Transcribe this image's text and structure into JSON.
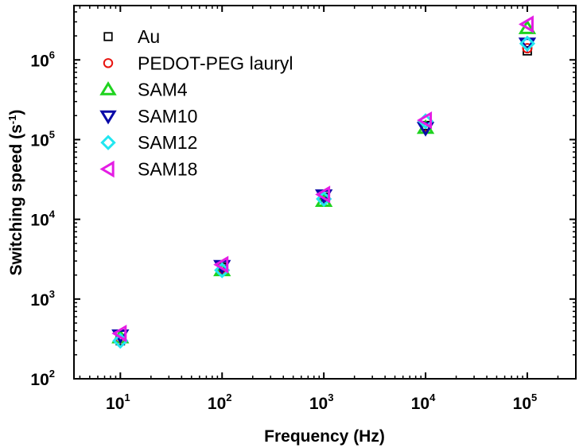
{
  "chart_data": {
    "type": "scatter",
    "xscale": "log",
    "yscale": "log",
    "xlim": [
      3.5,
      300000
    ],
    "ylim": [
      100,
      4800000
    ],
    "xlabel": "Frequency (Hz)",
    "ylabel": "Switching speed (s",
    "ylabel_exp": "-1",
    "ylabel_close": ")",
    "xticks": [
      {
        "base": "10",
        "exp": "1",
        "value": 10
      },
      {
        "base": "10",
        "exp": "2",
        "value": 100
      },
      {
        "base": "10",
        "exp": "3",
        "value": 1000
      },
      {
        "base": "10",
        "exp": "4",
        "value": 10000
      },
      {
        "base": "10",
        "exp": "5",
        "value": 100000
      }
    ],
    "yticks": [
      {
        "base": "10",
        "exp": "2",
        "value": 100
      },
      {
        "base": "10",
        "exp": "3",
        "value": 1000
      },
      {
        "base": "10",
        "exp": "4",
        "value": 10000
      },
      {
        "base": "10",
        "exp": "5",
        "value": 100000
      },
      {
        "base": "10",
        "exp": "6",
        "value": 1000000
      }
    ],
    "x": [
      10,
      100,
      1000,
      10000,
      100000
    ],
    "series": [
      {
        "name": "Au",
        "marker": "square",
        "color": "#000000",
        "values": [
          300,
          2500,
          19000,
          150000,
          1300000
        ]
      },
      {
        "name": "PEDOT-PEG lauryl",
        "marker": "circle",
        "color": "#e8130f",
        "values": [
          320,
          2400,
          18000,
          145000,
          1400000
        ]
      },
      {
        "name": "SAM4",
        "marker": "triangle-up",
        "color": "#1fd31f",
        "values": [
          330,
          2300,
          17000,
          140000,
          2500000
        ]
      },
      {
        "name": "SAM10",
        "marker": "triangle-down",
        "color": "#0a0aa8",
        "values": [
          350,
          2600,
          20000,
          140000,
          1600000
        ]
      },
      {
        "name": "SAM12",
        "marker": "diamond",
        "color": "#22e6f0",
        "values": [
          300,
          2300,
          18000,
          170000,
          1600000
        ]
      },
      {
        "name": "SAM18",
        "marker": "triangle-left",
        "color": "#e41de4",
        "values": [
          370,
          2700,
          20500,
          175000,
          2800000
        ]
      }
    ],
    "legend_position": "top-left"
  }
}
